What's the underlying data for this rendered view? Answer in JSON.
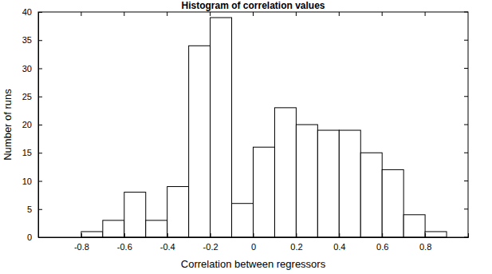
{
  "chart_data": {
    "type": "histogram",
    "title": "Histogram of correlation values",
    "x_label": "Correlation between regressors",
    "y_label": "Number of runs",
    "bins": [
      -0.8,
      -0.7,
      -0.6,
      -0.5,
      -0.4,
      -0.3,
      -0.2,
      -0.1,
      0,
      0.1,
      0.2,
      0.3,
      0.4,
      0.5,
      0.6,
      0.7,
      0.8,
      0.9
    ],
    "values": [
      1,
      3,
      8,
      3,
      9,
      34,
      39,
      6,
      16,
      23,
      20,
      19,
      19,
      15,
      12,
      4,
      1
    ],
    "color": "#ffffff",
    "xlim": [
      -1,
      1
    ],
    "xticks": [
      -0.8,
      -0.6,
      -0.4,
      -0.2,
      0,
      0.2,
      0.4,
      0.6,
      0.8
    ],
    "ylim": [
      0,
      40
    ],
    "yticks": [
      0,
      5,
      10,
      15,
      20,
      25,
      30,
      35,
      40
    ],
    "grid": false
  }
}
